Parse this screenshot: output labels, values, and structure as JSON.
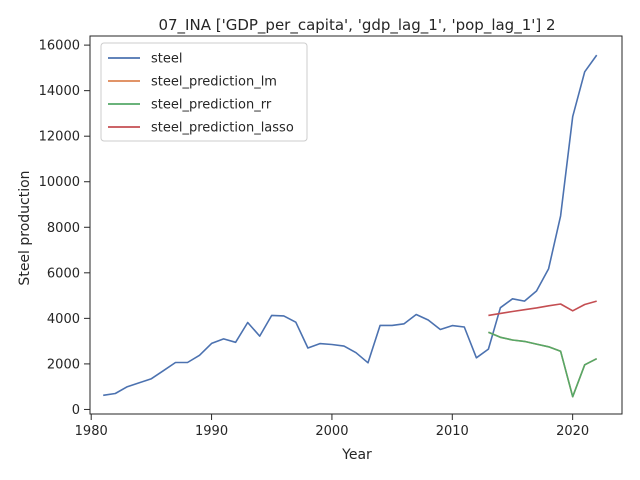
{
  "chart_data": {
    "type": "line",
    "title": "07_INA ['GDP_per_capita', 'gdp_lag_1', 'pop_lag_1'] 2",
    "xlabel": "Year",
    "ylabel": "Steel production",
    "xlim": [
      1979.9,
      2024.1
    ],
    "ylim": [
      -200,
      16400
    ],
    "xticks": [
      1980,
      1990,
      2000,
      2010,
      2020
    ],
    "yticks": [
      0,
      2000,
      4000,
      6000,
      8000,
      10000,
      12000,
      14000,
      16000
    ],
    "grid": false,
    "legend_position": "top-left",
    "series": [
      {
        "name": "steel",
        "color": "#4c72b0",
        "x": [
          1981,
          1982,
          1983,
          1984,
          1985,
          1986,
          1987,
          1988,
          1989,
          1990,
          1991,
          1992,
          1993,
          1994,
          1995,
          1996,
          1997,
          1998,
          1999,
          2000,
          2001,
          2002,
          2003,
          2004,
          2005,
          2006,
          2007,
          2008,
          2009,
          2010,
          2011,
          2012,
          2013,
          2014,
          2015,
          2016,
          2017,
          2018,
          2019,
          2020,
          2021,
          2022
        ],
        "y": [
          620,
          700,
          1000,
          1170,
          1350,
          1700,
          2060,
          2060,
          2380,
          2900,
          3100,
          2950,
          3820,
          3220,
          4130,
          4110,
          3830,
          2700,
          2890,
          2850,
          2780,
          2490,
          2050,
          3690,
          3690,
          3760,
          4170,
          3930,
          3510,
          3680,
          3620,
          2270,
          2650,
          4470,
          4860,
          4760,
          5200,
          6180,
          8500,
          12860,
          14830,
          15560
        ]
      },
      {
        "name": "steel_prediction_lm",
        "color": "#dd8452",
        "x": [
          2013,
          2014,
          2015,
          2016,
          2017,
          2018,
          2019,
          2020,
          2021,
          2022
        ],
        "y": [
          3390,
          3170,
          3050,
          2990,
          2870,
          2750,
          2560,
          560,
          1960,
          2230
        ]
      },
      {
        "name": "steel_prediction_rr",
        "color": "#55a868",
        "x": [
          2013,
          2014,
          2015,
          2016,
          2017,
          2018,
          2019,
          2020,
          2021,
          2022
        ],
        "y": [
          3390,
          3170,
          3050,
          2990,
          2870,
          2750,
          2560,
          560,
          1960,
          2230
        ]
      },
      {
        "name": "steel_prediction_lasso",
        "color": "#c44e52",
        "x": [
          2013,
          2014,
          2015,
          2016,
          2017,
          2018,
          2019,
          2020,
          2021,
          2022
        ],
        "y": [
          4130,
          4220,
          4300,
          4380,
          4460,
          4550,
          4630,
          4330,
          4610,
          4760
        ]
      }
    ]
  }
}
